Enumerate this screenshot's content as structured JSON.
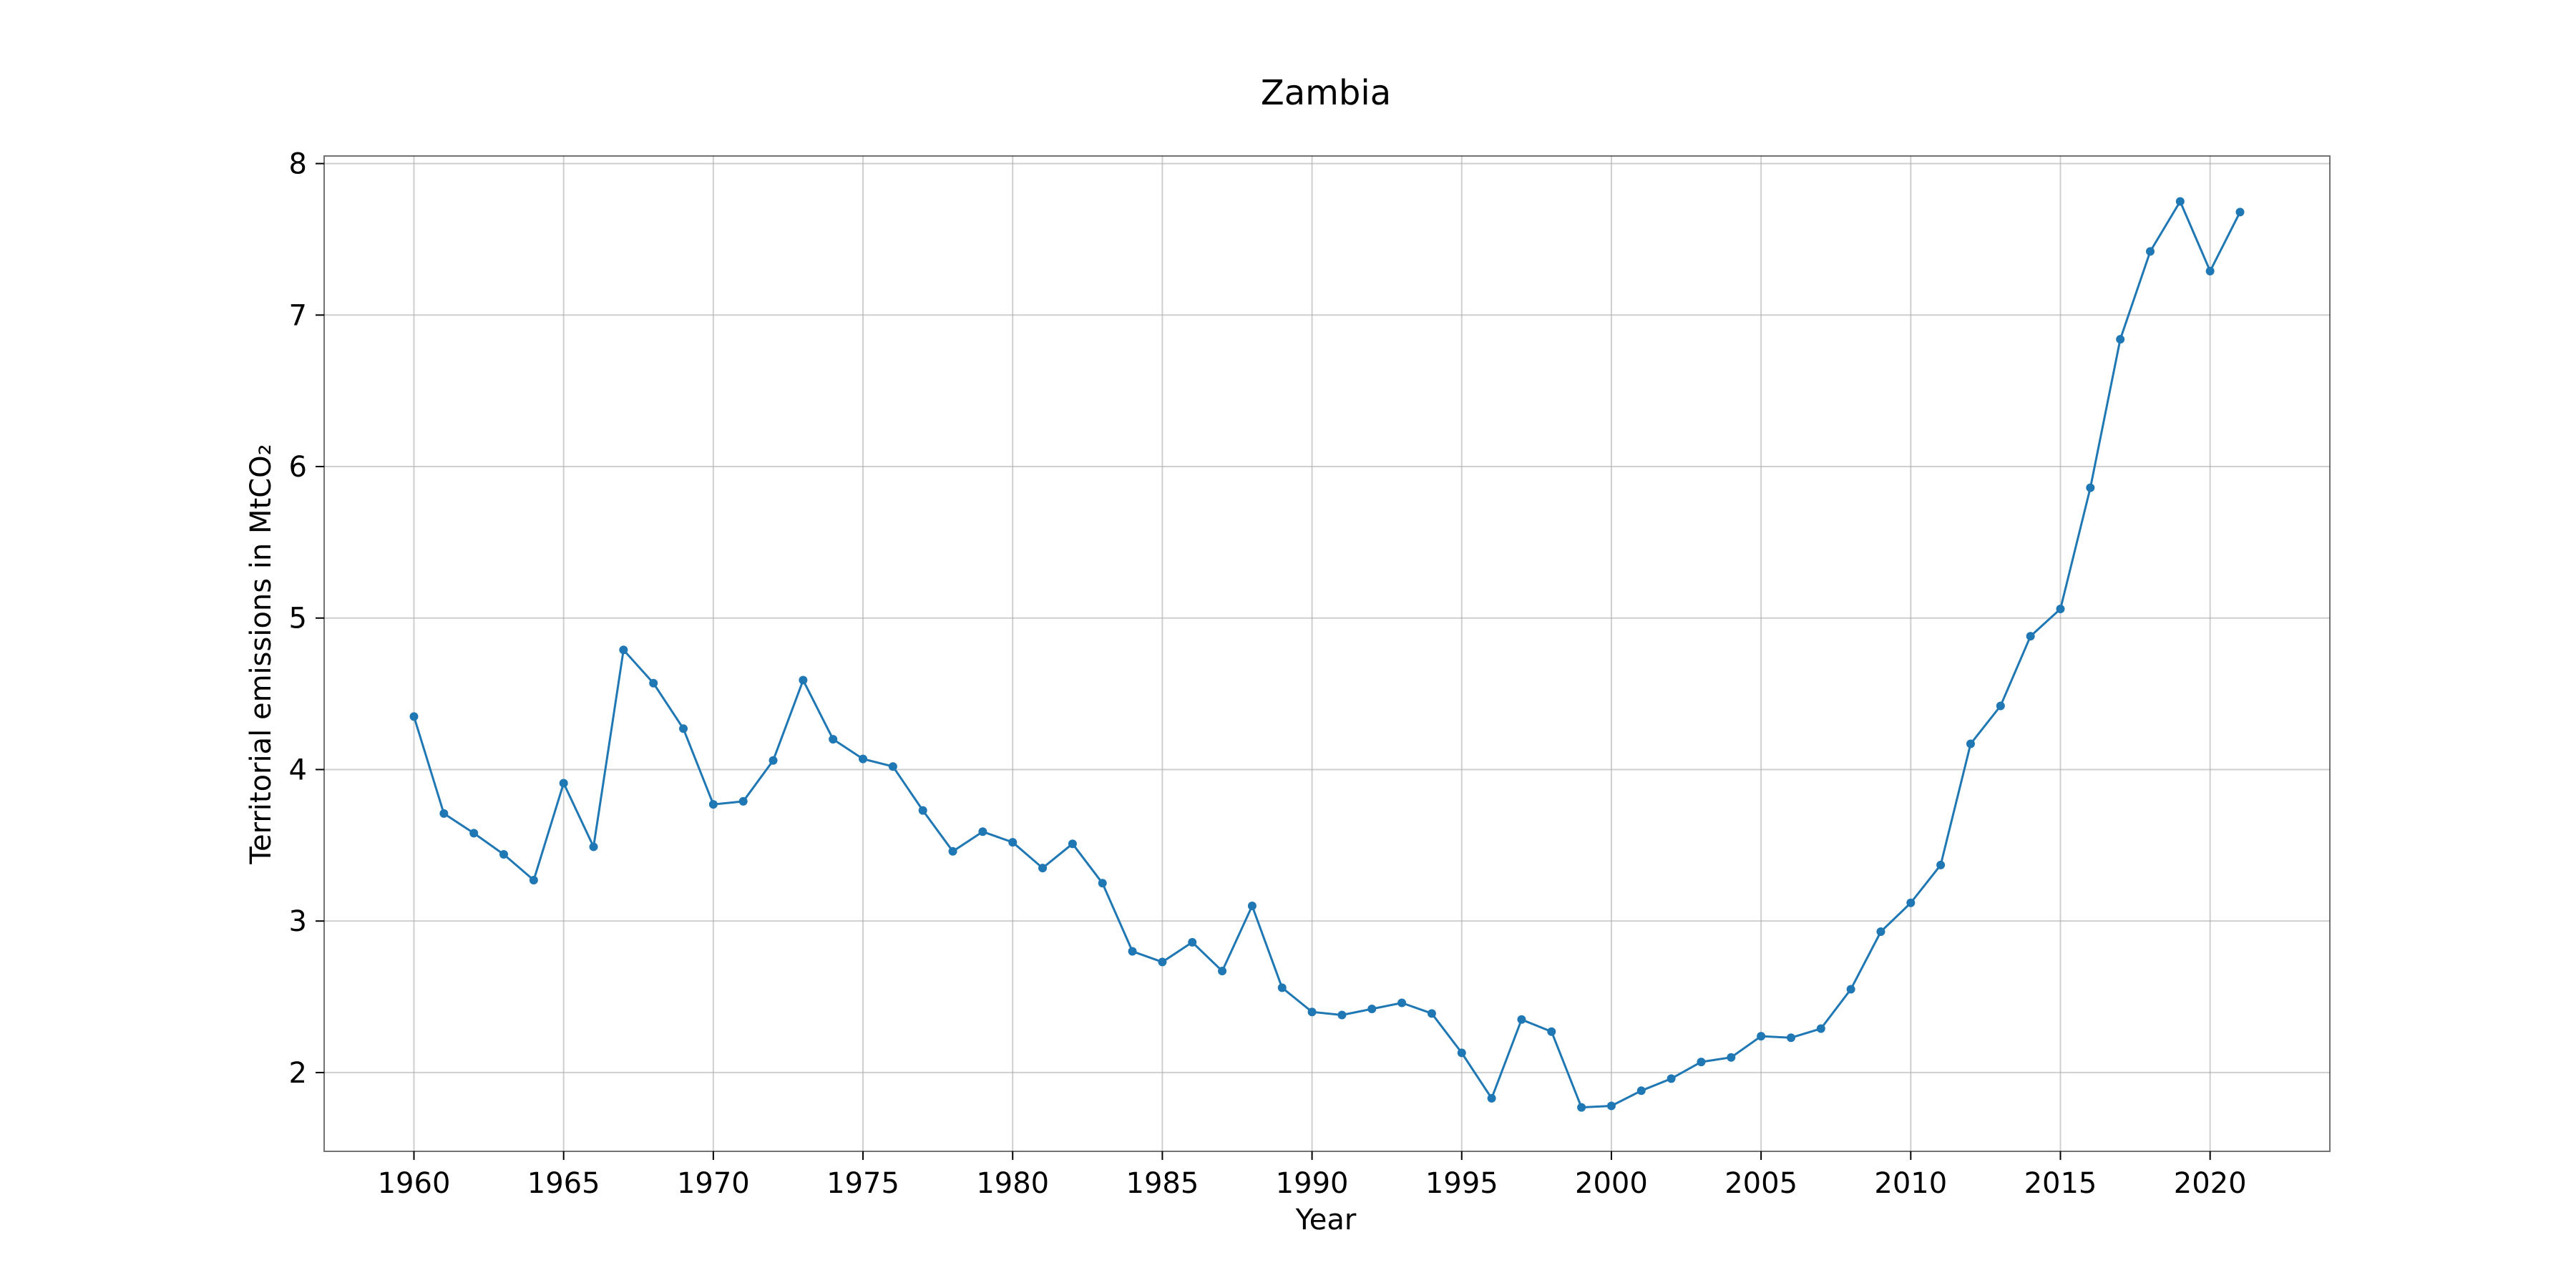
{
  "chart_data": {
    "type": "line",
    "title": "Zambia",
    "xlabel": "Year",
    "ylabel": "Territorial emissions in MtCO₂",
    "xlim": [
      1957,
      2024
    ],
    "ylim": [
      1.48,
      8.05
    ],
    "xticks": [
      1960,
      1965,
      1970,
      1975,
      1980,
      1985,
      1990,
      1995,
      2000,
      2005,
      2010,
      2015,
      2020
    ],
    "yticks": [
      2,
      3,
      4,
      5,
      6,
      7,
      8
    ],
    "grid": true,
    "color": "#1f77b4",
    "marker": "circle",
    "series": [
      {
        "x": [
          1960,
          1961,
          1962,
          1963,
          1964,
          1965,
          1966,
          1967,
          1968,
          1969,
          1970,
          1971,
          1972,
          1973,
          1974,
          1975,
          1976,
          1977,
          1978,
          1979,
          1980,
          1981,
          1982,
          1983,
          1984,
          1985,
          1986,
          1987,
          1988,
          1989,
          1990,
          1991,
          1992,
          1993,
          1994,
          1995,
          1996,
          1997,
          1998,
          1999,
          2000,
          2001,
          2002,
          2003,
          2004,
          2005,
          2006,
          2007,
          2008,
          2009,
          2010,
          2011,
          2012,
          2013,
          2014,
          2015,
          2016,
          2017,
          2018,
          2019,
          2020,
          2021
        ],
        "values": [
          4.35,
          3.71,
          3.58,
          3.44,
          3.27,
          3.91,
          3.49,
          4.79,
          4.57,
          4.27,
          3.77,
          3.79,
          4.06,
          4.59,
          4.2,
          4.07,
          4.02,
          3.73,
          3.46,
          3.59,
          3.52,
          3.35,
          3.51,
          3.25,
          2.8,
          2.73,
          2.86,
          2.67,
          3.1,
          2.56,
          2.4,
          2.38,
          2.42,
          2.46,
          2.39,
          2.13,
          1.83,
          2.35,
          2.27,
          1.77,
          1.78,
          1.88,
          1.96,
          2.07,
          2.1,
          2.24,
          2.23,
          2.29,
          2.55,
          2.93,
          3.12,
          3.37,
          4.17,
          4.42,
          4.88,
          5.06,
          5.86,
          6.84,
          7.42,
          7.75,
          7.29,
          7.68
        ]
      }
    ]
  }
}
